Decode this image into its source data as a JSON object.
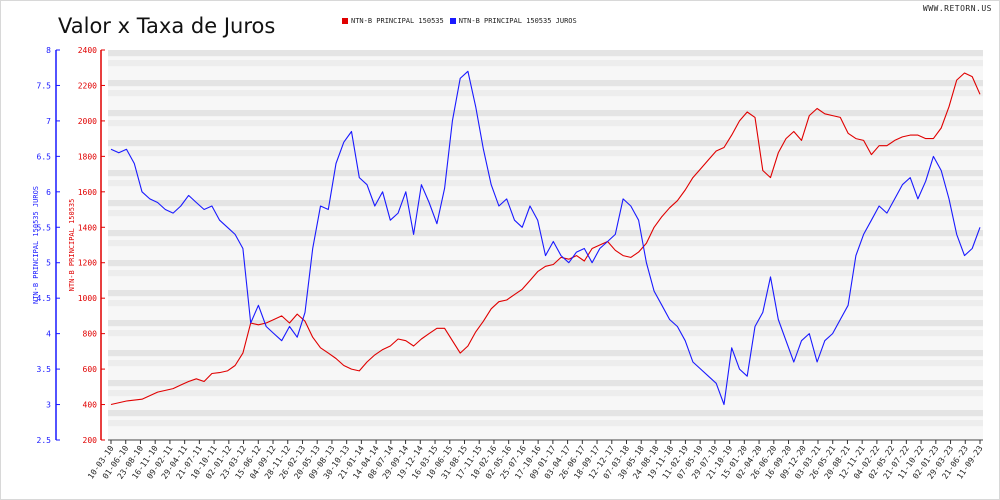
{
  "chart_data": {
    "type": "line",
    "title": "Valor x Taxa de Juros",
    "source_label": "WWW.RETORN.US",
    "left_axis": {
      "label": "NTN-B PRINCIPAL 150535 JUROS",
      "color": "#1a1aff",
      "ticks": [
        "8",
        "7.5",
        "7",
        "6.5",
        "6",
        "5.5",
        "5",
        "4.5",
        "4",
        "3.5",
        "3",
        "2.5"
      ],
      "range": [
        2.5,
        8
      ]
    },
    "right_axis": {
      "label": "NTN-B PRINCIPAL 150535",
      "color": "#e00000",
      "ticks": [
        "2400",
        "2200",
        "2000",
        "1800",
        "1600",
        "1400",
        "1200",
        "1000",
        "800",
        "600",
        "400",
        "200"
      ],
      "range": [
        200,
        2400
      ]
    },
    "x_ticks": [
      "10-03-10",
      "01-06-10",
      "23-08-10",
      "16-11-10",
      "09-02-11",
      "29-04-11",
      "21-07-11",
      "10-10-11",
      "02-01-12",
      "23-03-12",
      "15-06-12",
      "04-09-12",
      "28-11-12",
      "26-02-13",
      "20-05-13",
      "09-08-13",
      "30-10-13",
      "21-01-14",
      "14-04-14",
      "08-07-14",
      "29-09-14",
      "19-12-14",
      "16-03-15",
      "10-06-15",
      "31-08-15",
      "17-11-15",
      "10-02-16",
      "02-05-16",
      "25-07-16",
      "17-10-16",
      "09-01-17",
      "03-04-17",
      "26-06-17",
      "18-09-17",
      "12-12-17",
      "07-03-18",
      "30-05-18",
      "24-08-18",
      "19-11-18",
      "11-02-19",
      "07-05-19",
      "29-07-19",
      "21-10-19",
      "15-01-20",
      "02-04-20",
      "26-06-20",
      "16-09-20",
      "09-12-20",
      "03-03-21",
      "26-05-21",
      "20-08-21",
      "12-11-21",
      "04-02-22",
      "02-05-22",
      "21-07-22",
      "11-10-22",
      "02-01-23",
      "29-03-23",
      "21-06-23",
      "11-09-23"
    ],
    "series": [
      {
        "name": "NTN-B PRINCIPAL 150535",
        "axis": "right",
        "color": "#e00000",
        "values": [
          [
            0,
            400
          ],
          [
            2,
            420
          ],
          [
            4,
            430
          ],
          [
            6,
            470
          ],
          [
            8,
            490
          ],
          [
            9,
            510
          ],
          [
            10,
            530
          ],
          [
            11,
            545
          ],
          [
            12,
            530
          ],
          [
            13,
            575
          ],
          [
            14,
            580
          ],
          [
            15,
            590
          ],
          [
            16,
            620
          ],
          [
            17,
            690
          ],
          [
            18,
            860
          ],
          [
            19,
            850
          ],
          [
            20,
            860
          ],
          [
            21,
            880
          ],
          [
            22,
            900
          ],
          [
            23,
            860
          ],
          [
            24,
            910
          ],
          [
            25,
            870
          ],
          [
            26,
            780
          ],
          [
            27,
            720
          ],
          [
            28,
            690
          ],
          [
            29,
            660
          ],
          [
            30,
            620
          ],
          [
            31,
            600
          ],
          [
            32,
            590
          ],
          [
            33,
            640
          ],
          [
            34,
            680
          ],
          [
            35,
            710
          ],
          [
            36,
            730
          ],
          [
            37,
            770
          ],
          [
            38,
            760
          ],
          [
            39,
            730
          ],
          [
            40,
            770
          ],
          [
            41,
            800
          ],
          [
            42,
            830
          ],
          [
            43,
            830
          ],
          [
            44,
            760
          ],
          [
            45,
            690
          ],
          [
            46,
            730
          ],
          [
            47,
            810
          ],
          [
            48,
            870
          ],
          [
            49,
            940
          ],
          [
            50,
            980
          ],
          [
            51,
            990
          ],
          [
            52,
            1020
          ],
          [
            53,
            1050
          ],
          [
            54,
            1100
          ],
          [
            55,
            1150
          ],
          [
            56,
            1180
          ],
          [
            57,
            1190
          ],
          [
            58,
            1230
          ],
          [
            59,
            1220
          ],
          [
            60,
            1240
          ],
          [
            61,
            1210
          ],
          [
            62,
            1280
          ],
          [
            63,
            1300
          ],
          [
            64,
            1320
          ],
          [
            65,
            1270
          ],
          [
            66,
            1240
          ],
          [
            67,
            1230
          ],
          [
            68,
            1260
          ],
          [
            69,
            1310
          ],
          [
            70,
            1400
          ],
          [
            71,
            1460
          ],
          [
            72,
            1510
          ],
          [
            73,
            1550
          ],
          [
            74,
            1610
          ],
          [
            75,
            1680
          ],
          [
            76,
            1730
          ],
          [
            77,
            1780
          ],
          [
            78,
            1830
          ],
          [
            79,
            1850
          ],
          [
            80,
            1920
          ],
          [
            81,
            2000
          ],
          [
            82,
            2050
          ],
          [
            83,
            2020
          ],
          [
            84,
            1720
          ],
          [
            85,
            1680
          ],
          [
            86,
            1820
          ],
          [
            87,
            1900
          ],
          [
            88,
            1940
          ],
          [
            89,
            1890
          ],
          [
            90,
            2030
          ],
          [
            91,
            2070
          ],
          [
            92,
            2040
          ],
          [
            93,
            2030
          ],
          [
            94,
            2020
          ],
          [
            95,
            1930
          ],
          [
            96,
            1900
          ],
          [
            97,
            1890
          ],
          [
            98,
            1810
          ],
          [
            99,
            1860
          ],
          [
            100,
            1860
          ],
          [
            101,
            1890
          ],
          [
            102,
            1910
          ],
          [
            103,
            1920
          ],
          [
            104,
            1920
          ],
          [
            105,
            1900
          ],
          [
            106,
            1900
          ],
          [
            107,
            1960
          ],
          [
            108,
            2080
          ],
          [
            109,
            2230
          ],
          [
            110,
            2270
          ],
          [
            111,
            2250
          ],
          [
            112,
            2150
          ]
        ]
      },
      {
        "name": "NTN-B PRINCIPAL 150535 JUROS",
        "axis": "left",
        "color": "#1a1aff",
        "values": [
          [
            0,
            6.6
          ],
          [
            1,
            6.55
          ],
          [
            2,
            6.6
          ],
          [
            3,
            6.4
          ],
          [
            4,
            6.0
          ],
          [
            5,
            5.9
          ],
          [
            6,
            5.85
          ],
          [
            7,
            5.75
          ],
          [
            8,
            5.7
          ],
          [
            9,
            5.8
          ],
          [
            10,
            5.95
          ],
          [
            11,
            5.85
          ],
          [
            12,
            5.75
          ],
          [
            13,
            5.8
          ],
          [
            14,
            5.6
          ],
          [
            15,
            5.5
          ],
          [
            16,
            5.4
          ],
          [
            17,
            5.2
          ],
          [
            18,
            4.15
          ],
          [
            19,
            4.4
          ],
          [
            20,
            4.1
          ],
          [
            21,
            4.0
          ],
          [
            22,
            3.9
          ],
          [
            23,
            4.1
          ],
          [
            24,
            3.95
          ],
          [
            25,
            4.3
          ],
          [
            26,
            5.2
          ],
          [
            27,
            5.8
          ],
          [
            28,
            5.75
          ],
          [
            29,
            6.4
          ],
          [
            30,
            6.7
          ],
          [
            31,
            6.85
          ],
          [
            32,
            6.2
          ],
          [
            33,
            6.1
          ],
          [
            34,
            5.8
          ],
          [
            35,
            6.0
          ],
          [
            36,
            5.6
          ],
          [
            37,
            5.7
          ],
          [
            38,
            6.0
          ],
          [
            39,
            5.4
          ],
          [
            40,
            6.1
          ],
          [
            41,
            5.85
          ],
          [
            42,
            5.55
          ],
          [
            43,
            6.05
          ],
          [
            44,
            7.0
          ],
          [
            45,
            7.6
          ],
          [
            46,
            7.7
          ],
          [
            47,
            7.2
          ],
          [
            48,
            6.6
          ],
          [
            49,
            6.1
          ],
          [
            50,
            5.8
          ],
          [
            51,
            5.9
          ],
          [
            52,
            5.6
          ],
          [
            53,
            5.5
          ],
          [
            54,
            5.8
          ],
          [
            55,
            5.6
          ],
          [
            56,
            5.1
          ],
          [
            57,
            5.3
          ],
          [
            58,
            5.1
          ],
          [
            59,
            5.0
          ],
          [
            60,
            5.15
          ],
          [
            61,
            5.2
          ],
          [
            62,
            5.0
          ],
          [
            63,
            5.2
          ],
          [
            64,
            5.3
          ],
          [
            65,
            5.4
          ],
          [
            66,
            5.9
          ],
          [
            67,
            5.8
          ],
          [
            68,
            5.6
          ],
          [
            69,
            5.0
          ],
          [
            70,
            4.6
          ],
          [
            71,
            4.4
          ],
          [
            72,
            4.2
          ],
          [
            73,
            4.1
          ],
          [
            74,
            3.9
          ],
          [
            75,
            3.6
          ],
          [
            76,
            3.5
          ],
          [
            77,
            3.4
          ],
          [
            78,
            3.3
          ],
          [
            79,
            3.0
          ],
          [
            80,
            3.8
          ],
          [
            81,
            3.5
          ],
          [
            82,
            3.4
          ],
          [
            83,
            4.1
          ],
          [
            84,
            4.3
          ],
          [
            85,
            4.8
          ],
          [
            86,
            4.2
          ],
          [
            87,
            3.9
          ],
          [
            88,
            3.6
          ],
          [
            89,
            3.9
          ],
          [
            90,
            4.0
          ],
          [
            91,
            3.6
          ],
          [
            92,
            3.9
          ],
          [
            93,
            4.0
          ],
          [
            94,
            4.2
          ],
          [
            95,
            4.4
          ],
          [
            96,
            5.1
          ],
          [
            97,
            5.4
          ],
          [
            98,
            5.6
          ],
          [
            99,
            5.8
          ],
          [
            100,
            5.7
          ],
          [
            101,
            5.9
          ],
          [
            102,
            6.1
          ],
          [
            103,
            6.2
          ],
          [
            104,
            5.9
          ],
          [
            105,
            6.15
          ],
          [
            106,
            6.5
          ],
          [
            107,
            6.3
          ],
          [
            108,
            5.9
          ],
          [
            109,
            5.4
          ],
          [
            110,
            5.1
          ],
          [
            111,
            5.2
          ],
          [
            112,
            5.5
          ]
        ]
      }
    ],
    "grid": true
  }
}
